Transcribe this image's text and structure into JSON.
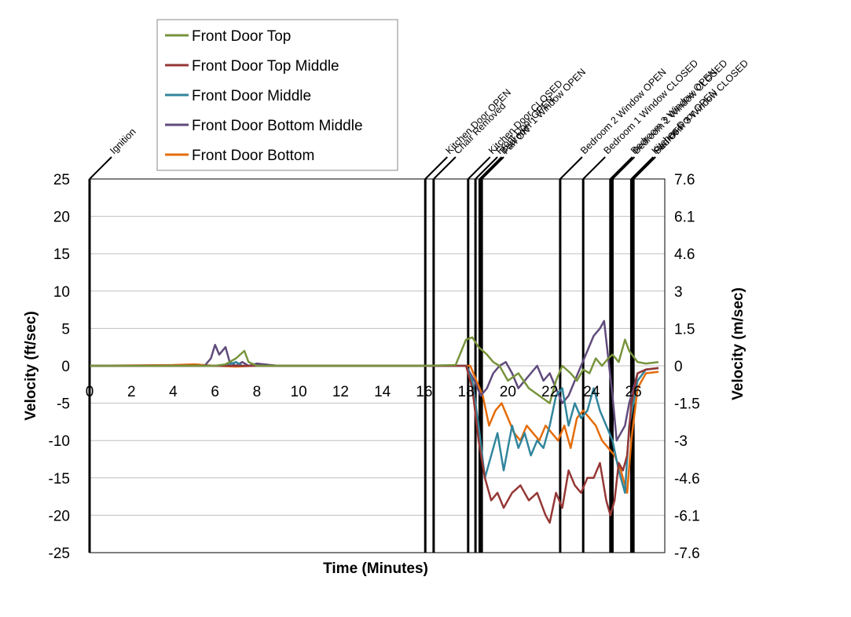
{
  "chart_data": {
    "type": "line",
    "xlabel": "Time (Minutes)",
    "ylabel": "Velocity (ft/sec)",
    "y2label": "Velocity (m/sec)",
    "xlim": [
      0,
      27.5
    ],
    "ylim": [
      -25,
      25
    ],
    "x_ticks": [
      0,
      2,
      4,
      6,
      8,
      10,
      12,
      14,
      16,
      18,
      20,
      22,
      24,
      26
    ],
    "y_ticks": [
      25,
      20,
      15,
      10,
      5,
      0,
      -5,
      -10,
      -15,
      -20,
      -25
    ],
    "y2_ticks": [
      "7.6",
      "6.1",
      "4.6",
      "3",
      "1.5",
      "0",
      "-1.5",
      "-3",
      "-4.6",
      "-6.1",
      "-7.6"
    ],
    "grid": true,
    "legend_position": "top-left",
    "colors": {
      "Front Door Top": "#77933c",
      "Front Door Top Middle": "#953735",
      "Front Door Middle": "#31859c",
      "Front Door Bottom Middle": "#604a7b",
      "Front Door Bottom": "#e46c0a"
    },
    "series": [
      {
        "name": "Front Door Top",
        "x": [
          0,
          5,
          6,
          6.5,
          7,
          7.4,
          7.6,
          8,
          9,
          16,
          17.5,
          18,
          18.3,
          18.6,
          19,
          19.3,
          19.6,
          20,
          20.5,
          21,
          21.5,
          22,
          22.3,
          22.6,
          23,
          23.3,
          23.6,
          23.9,
          24.2,
          24.5,
          24.8,
          25,
          25.3,
          25.6,
          25.8,
          26.2,
          26.6,
          27.2
        ],
        "y": [
          0,
          0,
          0,
          0.2,
          1,
          2,
          0.5,
          0,
          0,
          0,
          0.1,
          3.5,
          3.8,
          2.5,
          1.5,
          0.5,
          0,
          -2,
          -1,
          -3,
          -4,
          -5,
          -2,
          0,
          -1,
          -2,
          -0.5,
          -1,
          1,
          0,
          1,
          1.5,
          0.5,
          3.5,
          2,
          0.5,
          0.3,
          0.5
        ]
      },
      {
        "name": "Front Door Top Middle",
        "x": [
          0,
          16,
          18,
          18.3,
          18.6,
          18.9,
          19.2,
          19.5,
          19.8,
          20.2,
          20.6,
          21,
          21.4,
          21.8,
          22,
          22.3,
          22.6,
          22.9,
          23.2,
          23.5,
          23.8,
          24.1,
          24.4,
          24.7,
          24.9,
          25.1,
          25.3,
          25.5,
          25.7,
          25.9,
          26.2,
          26.6,
          27.2
        ],
        "y": [
          0,
          0,
          0,
          -3,
          -10,
          -15,
          -18,
          -17,
          -19,
          -17,
          -16,
          -18,
          -17,
          -20,
          -21,
          -17,
          -19,
          -14,
          -16,
          -17,
          -15,
          -15,
          -13,
          -18,
          -20,
          -18,
          -13,
          -14,
          -12,
          -5,
          -1,
          -0.5,
          -0.3
        ]
      },
      {
        "name": "Front Door Middle",
        "x": [
          0,
          6.5,
          7,
          7.3,
          8,
          16,
          18,
          18.3,
          18.6,
          18.9,
          19.2,
          19.5,
          19.8,
          20.2,
          20.5,
          20.8,
          21.1,
          21.4,
          21.7,
          22,
          22.3,
          22.6,
          22.9,
          23.2,
          23.5,
          23.8,
          24.1,
          24.4,
          24.7,
          25,
          25.3,
          25.6,
          25.8,
          26.2,
          26.6,
          27.2
        ],
        "y": [
          0,
          0,
          0.5,
          0,
          0,
          0,
          0,
          -2,
          -8,
          -15,
          -12,
          -9,
          -14,
          -8,
          -11,
          -9,
          -12,
          -10,
          -11,
          -8,
          -4,
          -3,
          -8,
          -5,
          -7,
          -6,
          -3,
          -6,
          -8,
          -10,
          -14,
          -17,
          -8,
          -2,
          -0.5,
          -0.3
        ]
      },
      {
        "name": "Front Door Bottom Middle",
        "x": [
          0,
          5.5,
          5.8,
          6,
          6.2,
          6.5,
          6.7,
          7,
          7.3,
          7.6,
          8,
          9,
          16,
          18,
          18.4,
          18.7,
          19,
          19.3,
          19.6,
          19.9,
          20.2,
          20.5,
          20.8,
          21.1,
          21.4,
          21.7,
          22,
          22.3,
          22.6,
          22.9,
          23.2,
          23.5,
          23.8,
          24.1,
          24.4,
          24.6,
          24.8,
          25,
          25.2,
          25.4,
          25.6,
          25.8,
          26.2,
          26.6,
          27.2
        ],
        "y": [
          0,
          0,
          1,
          2.8,
          1.5,
          2.5,
          0.5,
          0,
          0.5,
          0,
          0.3,
          0,
          0,
          0,
          -2,
          -4,
          -3,
          -1,
          0,
          0.5,
          -1,
          -3,
          -2,
          -1,
          0,
          -2,
          -1,
          -3,
          -5,
          -4,
          -2,
          0,
          2,
          4,
          5,
          6,
          1,
          -4,
          -10,
          -9,
          -8,
          -5,
          -1,
          -0.5,
          -0.3
        ]
      },
      {
        "name": "Front Door Bottom",
        "x": [
          0,
          4,
          5,
          6,
          7,
          8,
          16,
          18,
          18.2,
          18.5,
          18.8,
          19.1,
          19.4,
          19.7,
          20,
          20.3,
          20.6,
          20.9,
          21.2,
          21.5,
          21.8,
          22.1,
          22.4,
          22.7,
          23,
          23.3,
          23.6,
          23.9,
          24.2,
          24.5,
          24.8,
          25.1,
          25.4,
          25.7,
          25.9,
          26.2,
          26.6,
          27.2
        ],
        "y": [
          0,
          0.1,
          0.2,
          0,
          -0.1,
          0,
          0,
          0,
          0,
          -2,
          -4,
          -8,
          -6,
          -5,
          -7,
          -9,
          -10,
          -8,
          -9,
          -10,
          -8,
          -9,
          -10,
          -8,
          -11,
          -7,
          -6,
          -7,
          -8,
          -10,
          -11,
          -12,
          -14,
          -17,
          -10,
          -3,
          -1,
          -0.8
        ]
      }
    ],
    "events": [
      {
        "label": "Ignition",
        "x": 0
      },
      {
        "label": "Kitchen Door OPEN",
        "x": 16.05
      },
      {
        "label": "Chair Removed",
        "x": 16.45
      },
      {
        "label": "Kitchen Door CLOSED",
        "x": 18.1
      },
      {
        "label": "Front Door OPEN",
        "x": 18.45
      },
      {
        "label": "Bedroom 1 Window OPEN",
        "x": 18.65
      },
      {
        "label": "Fan ON",
        "x": 18.75
      },
      {
        "label": "Bedroom 2 Window OPEN",
        "x": 22.5
      },
      {
        "label": "Bedroom 1 Window CLOSED",
        "x": 23.6
      },
      {
        "label": "Bedroom 3 Window OPEN",
        "x": 24.9
      },
      {
        "label": "Bedroom 2 Window CLOSED",
        "x": 25.0
      },
      {
        "label": "Kitchen Door OPEN",
        "x": 25.9
      },
      {
        "label": "Bedroom 3 Window CLOSED",
        "x": 26.0
      },
      {
        "label": "Fan OFF",
        "x": 26.0
      }
    ]
  }
}
